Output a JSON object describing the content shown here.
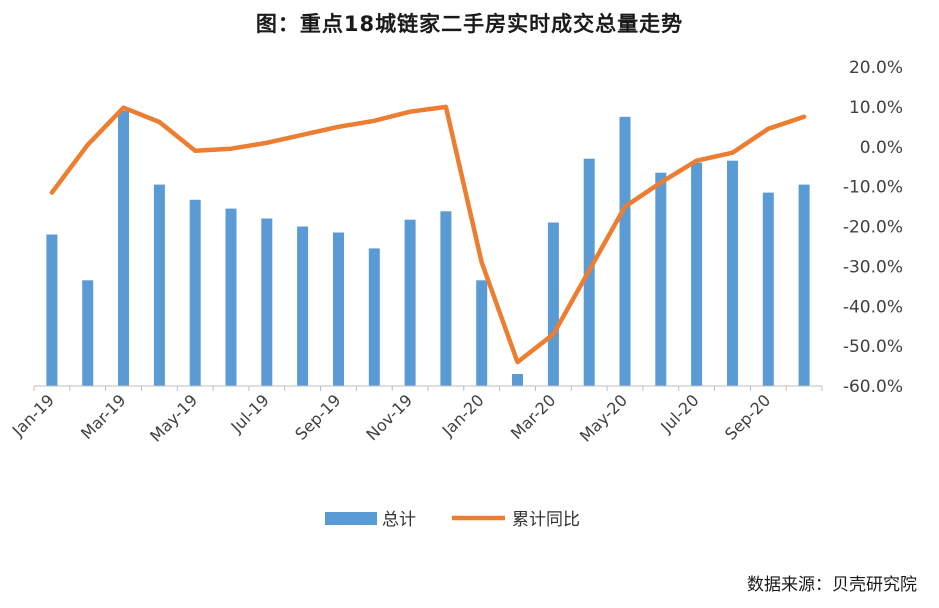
{
  "chart_data": {
    "type": "bar",
    "title": "图：重点18城链家二手房实时成交总量走势",
    "source": "数据来源：贝壳研究院",
    "x": [
      "Jan-19",
      "Feb-19",
      "Mar-19",
      "Apr-19",
      "May-19",
      "Jun-19",
      "Jul-19",
      "Aug-19",
      "Sep-19",
      "Oct-19",
      "Nov-19",
      "Dec-19",
      "Jan-20",
      "Feb-20",
      "Mar-20",
      "Apr-20",
      "May-20",
      "Jun-20",
      "Jul-20",
      "Aug-20",
      "Sep-20",
      "Oct-20"
    ],
    "x_tick_labels": [
      "Jan-19",
      "Mar-19",
      "May-19",
      "Jul-19",
      "Sep-19",
      "Nov-19",
      "Jan-20",
      "Mar-20",
      "May-20",
      "Jul-20",
      "Sep-20"
    ],
    "y_tick_labels": [
      "20.0%",
      "10.0%",
      "0.0%",
      "-10.0%",
      "-20.0%",
      "-30.0%",
      "-40.0%",
      "-50.0%",
      "-60.0%"
    ],
    "right_axis": {
      "ylim": [
        -60,
        20
      ],
      "ticks": [
        20,
        10,
        0,
        -10,
        -20,
        -30,
        -40,
        -50,
        -60
      ],
      "unit": "%"
    },
    "series": [
      {
        "name": "总计",
        "kind": "bar",
        "color": "#5b9bd5",
        "values": [
          -22.0,
          -33.5,
          9.0,
          -9.5,
          -13.3,
          -15.5,
          -18.0,
          -20.0,
          -21.5,
          -25.5,
          -18.3,
          -16.2,
          -33.5,
          -57.0,
          -19.0,
          -3.0,
          7.5,
          -6.5,
          -4.0,
          -3.5,
          -11.5,
          -9.5
        ]
      },
      {
        "name": "累计同比",
        "kind": "line",
        "color": "#ed7d31",
        "values": [
          -11.5,
          0.5,
          9.8,
          6.2,
          -1.0,
          -0.5,
          1.0,
          3.0,
          5.0,
          6.5,
          8.8,
          10.0,
          -29.0,
          -54.0,
          -47.0,
          -31.0,
          -15.0,
          -9.0,
          -3.5,
          -1.5,
          4.5,
          7.5
        ]
      }
    ],
    "legend": {
      "position": "bottom"
    },
    "grid": false
  }
}
